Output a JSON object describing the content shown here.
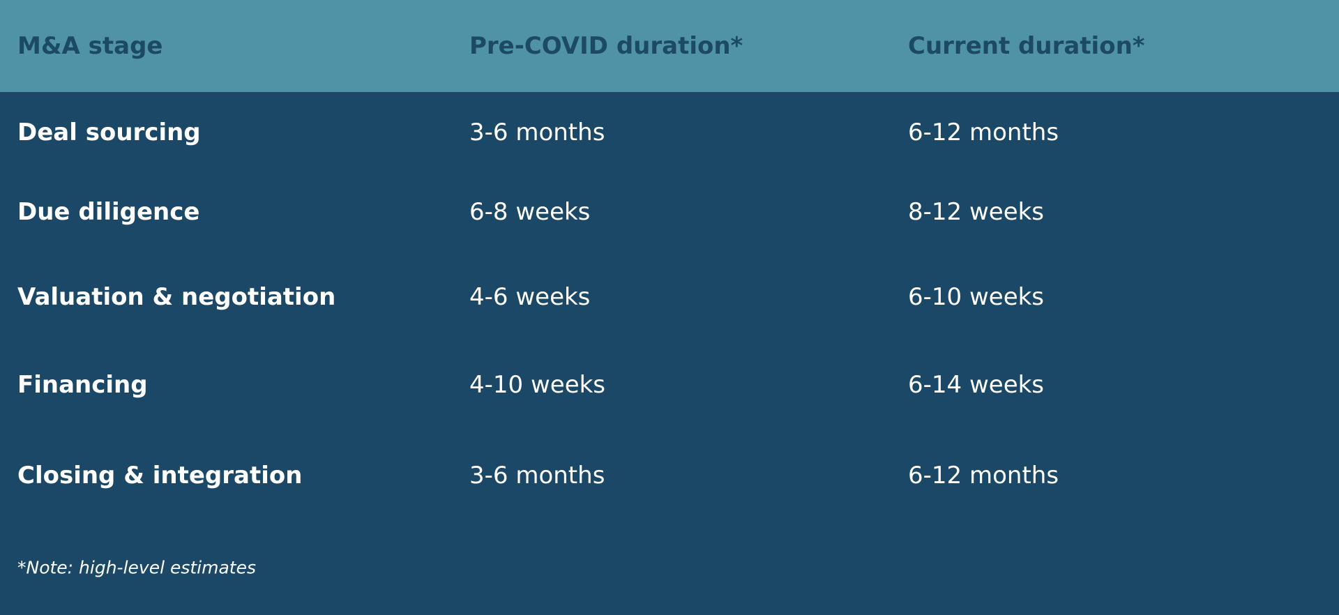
{
  "colors": {
    "header_bg": "#5093a6",
    "header_text": "#1c4a66",
    "body_bg": "#1b4866",
    "body_text": "#ffffff"
  },
  "table": {
    "headers": [
      "M&A stage",
      "Pre-COVID duration*",
      "Current duration*"
    ],
    "rows": [
      [
        "Deal sourcing",
        "3-6 months",
        "6-12 months"
      ],
      [
        "Due diligence",
        "6-8 weeks",
        "8-12 weeks"
      ],
      [
        "Valuation & negotiation",
        "4-6 weeks",
        "6-10 weeks"
      ],
      [
        "Financing",
        "4-10 weeks",
        "6-14 weeks"
      ],
      [
        "Closing & integration",
        "3-6 months",
        "6-12 months"
      ]
    ]
  },
  "note": "*Note: high-level estimates"
}
